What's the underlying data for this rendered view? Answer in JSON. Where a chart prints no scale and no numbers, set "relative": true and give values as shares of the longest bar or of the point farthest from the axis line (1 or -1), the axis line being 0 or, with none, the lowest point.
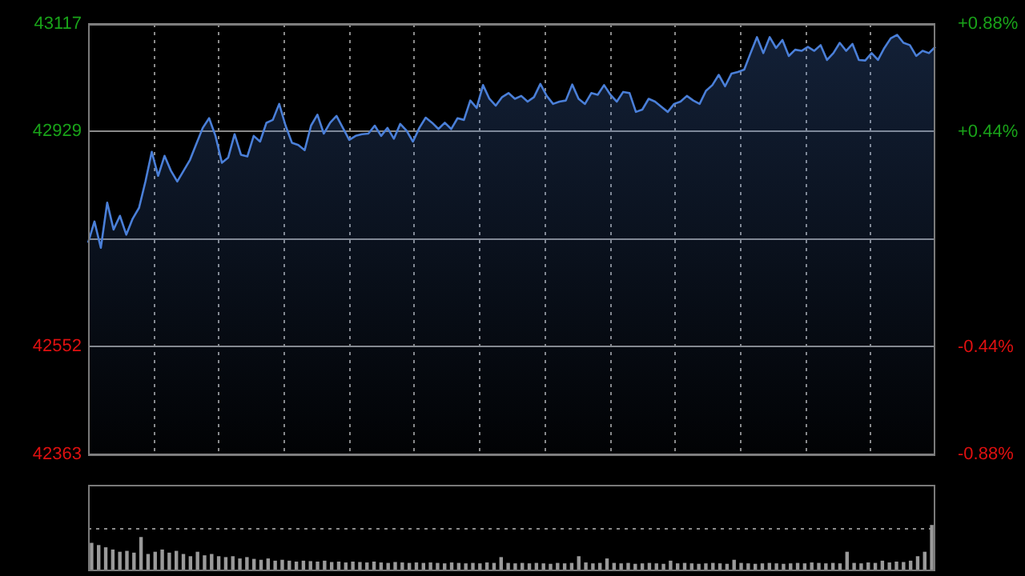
{
  "chart_data": [
    {
      "type": "area",
      "color": "#4a7fd8",
      "grid": true,
      "categories": [
        null,
        null,
        null,
        null,
        null,
        null,
        null,
        null,
        null,
        null,
        null,
        null,
        null,
        null,
        null,
        null,
        null,
        null,
        null,
        null,
        null,
        null,
        null,
        null,
        null,
        null,
        null,
        null,
        null,
        null,
        null,
        null,
        null,
        null,
        null,
        null,
        null,
        null,
        null,
        null,
        null,
        null,
        null,
        null,
        null,
        null,
        null,
        null,
        null,
        null,
        null,
        null,
        null,
        null,
        null,
        null,
        null,
        null,
        null,
        null,
        null,
        null,
        null,
        null,
        null,
        null,
        null,
        null,
        null,
        null,
        null,
        null,
        null,
        null,
        null,
        null,
        null,
        null,
        null,
        null,
        null,
        null,
        null,
        null,
        null,
        null,
        null,
        null,
        null,
        null,
        null,
        null,
        null,
        null,
        null,
        null,
        null,
        null,
        null,
        null,
        null,
        null,
        null,
        null,
        null,
        null,
        null,
        null,
        null,
        null,
        null,
        null,
        null,
        null,
        null,
        null,
        null,
        null,
        null,
        null,
        null,
        null,
        null,
        null,
        null,
        null,
        null,
        null,
        null,
        null,
        null,
        null,
        null,
        null
      ],
      "values": [
        42734,
        42771,
        42725,
        42804,
        42757,
        42781,
        42748,
        42776,
        42795,
        42841,
        42893,
        42851,
        42886,
        42860,
        42841,
        42860,
        42879,
        42907,
        42935,
        42952,
        42921,
        42874,
        42883,
        42924,
        42888,
        42885,
        42921,
        42911,
        42944,
        42949,
        42977,
        42939,
        42909,
        42905,
        42896,
        42939,
        42958,
        42925,
        42944,
        42956,
        42935,
        42914,
        42921,
        42924,
        42925,
        42939,
        42921,
        42935,
        42916,
        42942,
        42930,
        42911,
        42935,
        42953,
        42944,
        42933,
        42944,
        42933,
        42952,
        42949,
        42983,
        42970,
        43010,
        42986,
        42974,
        42989,
        42996,
        42986,
        42991,
        42981,
        42989,
        43012,
        42991,
        42977,
        42981,
        42983,
        43011,
        42986,
        42977,
        42996,
        42993,
        43010,
        42993,
        42981,
        42998,
        42996,
        42963,
        42967,
        42986,
        42981,
        42972,
        42963,
        42977,
        42981,
        42991,
        42983,
        42977,
        43000,
        43010,
        43028,
        43008,
        43030,
        43033,
        43037,
        43066,
        43094,
        43066,
        43094,
        43075,
        43089,
        43061,
        43072,
        43070,
        43077,
        43070,
        43080,
        43054,
        43066,
        43084,
        43070,
        43082,
        43054,
        43053,
        43066,
        43054,
        43075,
        43092,
        43098,
        43084,
        43080,
        43061,
        43070,
        43066,
        43077
      ],
      "ylim": [
        42363,
        43117
      ],
      "yticks": [
        43117,
        42929,
        {
          "value": 42740,
          "label": null
        },
        42552,
        42363
      ],
      "y2lim": [
        -0.88,
        0.88
      ],
      "y2ticks": [
        {
          "value": 0.88,
          "label": "+0.88%"
        },
        {
          "value": 0.44,
          "label": "+0.44%"
        },
        {
          "value": 0,
          "label": null
        },
        {
          "value": -0.44,
          "label": "-0.44%"
        },
        {
          "value": -0.88,
          "label": "-0.88%"
        }
      ]
    },
    {
      "type": "bar",
      "relative": true,
      "color": "#9a9a9a",
      "grid": true,
      "categories": [
        null,
        null,
        null,
        null,
        null,
        null,
        null,
        null,
        null,
        null,
        null,
        null,
        null,
        null,
        null,
        null,
        null,
        null,
        null,
        null,
        null,
        null,
        null,
        null,
        null,
        null,
        null,
        null,
        null,
        null,
        null,
        null,
        null,
        null,
        null,
        null,
        null,
        null,
        null,
        null,
        null,
        null,
        null,
        null,
        null,
        null,
        null,
        null,
        null,
        null,
        null,
        null,
        null,
        null,
        null,
        null,
        null,
        null,
        null,
        null,
        null,
        null,
        null,
        null,
        null,
        null,
        null,
        null,
        null,
        null,
        null,
        null,
        null,
        null,
        null,
        null,
        null,
        null,
        null,
        null,
        null,
        null,
        null,
        null,
        null,
        null,
        null,
        null,
        null,
        null,
        null,
        null,
        null,
        null,
        null,
        null,
        null,
        null,
        null,
        null,
        null,
        null,
        null,
        null,
        null,
        null,
        null,
        null,
        null,
        null,
        null,
        null,
        null,
        null,
        null,
        null,
        null,
        null,
        null,
        null
      ],
      "values": [
        0.6,
        0.55,
        0.5,
        0.45,
        0.4,
        0.42,
        0.38,
        0.73,
        0.35,
        0.4,
        0.45,
        0.38,
        0.42,
        0.35,
        0.3,
        0.4,
        0.32,
        0.35,
        0.3,
        0.28,
        0.3,
        0.25,
        0.28,
        0.24,
        0.22,
        0.25,
        0.2,
        0.22,
        0.2,
        0.18,
        0.2,
        0.19,
        0.18,
        0.2,
        0.17,
        0.18,
        0.16,
        0.18,
        0.17,
        0.16,
        0.18,
        0.16,
        0.15,
        0.17,
        0.16,
        0.15,
        0.16,
        0.15,
        0.16,
        0.15,
        0.14,
        0.16,
        0.15,
        0.14,
        0.15,
        0.14,
        0.16,
        0.15,
        0.28,
        0.15,
        0.14,
        0.15,
        0.14,
        0.15,
        0.14,
        0.13,
        0.15,
        0.14,
        0.15,
        0.3,
        0.16,
        0.14,
        0.15,
        0.25,
        0.15,
        0.14,
        0.15,
        0.13,
        0.14,
        0.15,
        0.14,
        0.13,
        0.2,
        0.14,
        0.15,
        0.14,
        0.13,
        0.14,
        0.15,
        0.14,
        0.13,
        0.22,
        0.15,
        0.14,
        0.13,
        0.14,
        0.15,
        0.14,
        0.13,
        0.14,
        0.15,
        0.14,
        0.16,
        0.15,
        0.14,
        0.15,
        0.14,
        0.4,
        0.15,
        0.14,
        0.16,
        0.15,
        0.2,
        0.16,
        0.18,
        0.17,
        0.2,
        0.3,
        0.4,
        1.0
      ]
    }
  ]
}
